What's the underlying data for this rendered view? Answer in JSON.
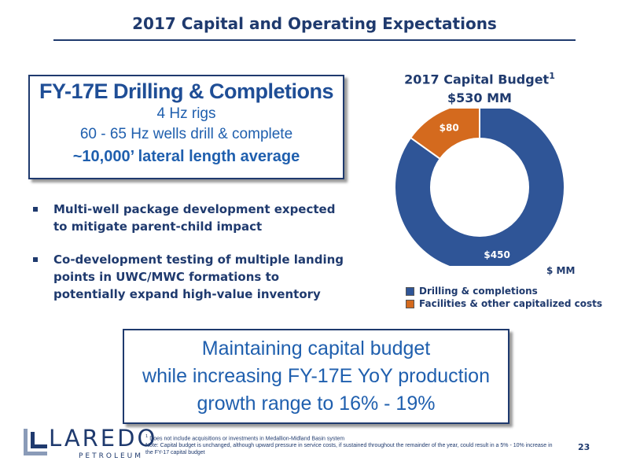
{
  "slide": {
    "title": "2017 Capital and Operating Expectations",
    "page_number": "23"
  },
  "drilling_box": {
    "heading": "FY-17E Drilling & Completions",
    "line1": "4 Hz rigs",
    "line2": "60 - 65 Hz wells drill & complete",
    "line3": "~10,000’ lateral length average"
  },
  "bullets": [
    "Multi-well package development expected to mitigate parent-child impact",
    "Co-development testing of multiple landing points in UWC/MWC formations to potentially expand high-value inventory"
  ],
  "chart_data": {
    "type": "pie",
    "title": "2017 Capital Budget",
    "title_superscript": "1",
    "subtitle": "$530 MM",
    "unit_label": "$ MM",
    "categories": [
      "Drilling & completions",
      "Facilities & other capitalized costs"
    ],
    "values": [
      450,
      80
    ],
    "data_labels": [
      "$450",
      "$80"
    ],
    "colors": [
      "#2f5597",
      "#d46a1e"
    ],
    "legend_position": "bottom"
  },
  "highlight_box": {
    "line1": "Maintaining capital budget",
    "line2": "while increasing FY-17E YoY production",
    "line3": "growth range to 16% - 19%"
  },
  "logo": {
    "wordmark": "LAREDO",
    "subtext": "PETROLEUM"
  },
  "footnotes": {
    "note1_marker": "1",
    "note1": "Does not include acquisitions or investments in Medallion-Midland Basin system",
    "note2": "Note: Capital budget is unchanged, although upward pressure in service costs, if sustained throughout the remainder of the year, could result in a 5% - 10% increase in the FY-17 capital budget"
  }
}
